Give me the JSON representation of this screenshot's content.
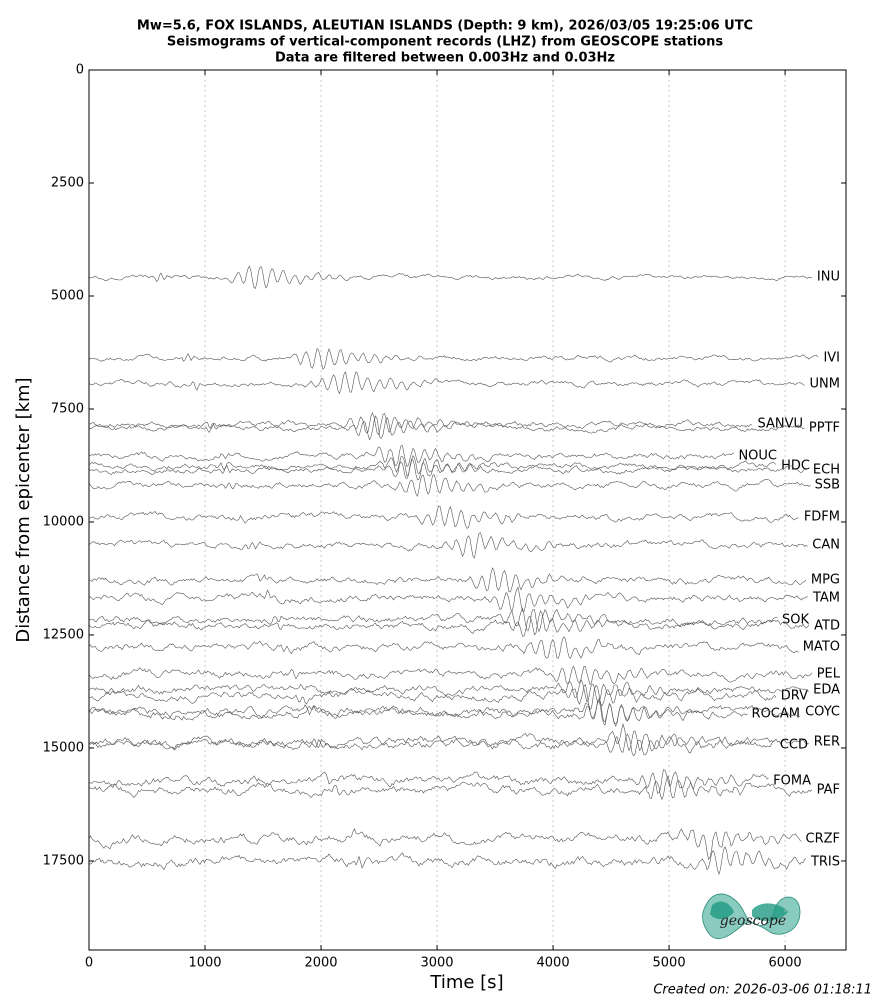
{
  "chart_data": {
    "type": "seismogram",
    "title": [
      "Mw=5.6, FOX ISLANDS, ALEUTIAN ISLANDS (Depth: 9 km), 2026/03/05 19:25:06 UTC",
      "Seismograms of vertical-component records (LHZ) from GEOSCOPE stations",
      "Data are filtered between 0.003Hz and 0.03Hz"
    ],
    "x_label": "Time [s]",
    "y_label": "Distance from epicenter [km]",
    "xlim": [
      0,
      6525
    ],
    "ylim": [
      0,
      19470
    ],
    "y_inverted": true,
    "xticks": [
      0,
      1000,
      2000,
      3000,
      4000,
      5000,
      6000
    ],
    "yticks": [
      0,
      2500,
      5000,
      7500,
      10000,
      12500,
      15000,
      17500
    ],
    "grid": "x",
    "trace_color": "#555555",
    "stations": [
      {
        "name": "INU",
        "distance": 4580
      },
      {
        "name": "IVI",
        "distance": 6372
      },
      {
        "name": "UNM",
        "distance": 6947
      },
      {
        "name": "SANVU",
        "distance": 7832
      },
      {
        "name": "PPTF",
        "distance": 7920
      },
      {
        "name": "NOUC",
        "distance": 8540
      },
      {
        "name": "HDC",
        "distance": 8761
      },
      {
        "name": "ECH",
        "distance": 8850
      },
      {
        "name": "SSB",
        "distance": 9181
      },
      {
        "name": "FDFM",
        "distance": 9889
      },
      {
        "name": "CAN",
        "distance": 10509
      },
      {
        "name": "MPG",
        "distance": 11283
      },
      {
        "name": "TAM",
        "distance": 11681
      },
      {
        "name": "SOK",
        "distance": 12168
      },
      {
        "name": "ATD",
        "distance": 12301
      },
      {
        "name": "MATO",
        "distance": 12765
      },
      {
        "name": "PEL",
        "distance": 13363
      },
      {
        "name": "DRV",
        "distance": 13850
      },
      {
        "name": "EDA",
        "distance": 13720
      },
      {
        "name": "ROCAM",
        "distance": 14248
      },
      {
        "name": "COYC",
        "distance": 14204
      },
      {
        "name": "RER",
        "distance": 14867
      },
      {
        "name": "CCD",
        "distance": 14934
      },
      {
        "name": "FOMA",
        "distance": 15730
      },
      {
        "name": "PAF",
        "distance": 15929
      },
      {
        "name": "CRZF",
        "distance": 17013
      },
      {
        "name": "TRIS",
        "distance": 17522
      }
    ],
    "footer": "Created on: 2026-03-06 01:18:11",
    "logo_text": "geoscope"
  }
}
